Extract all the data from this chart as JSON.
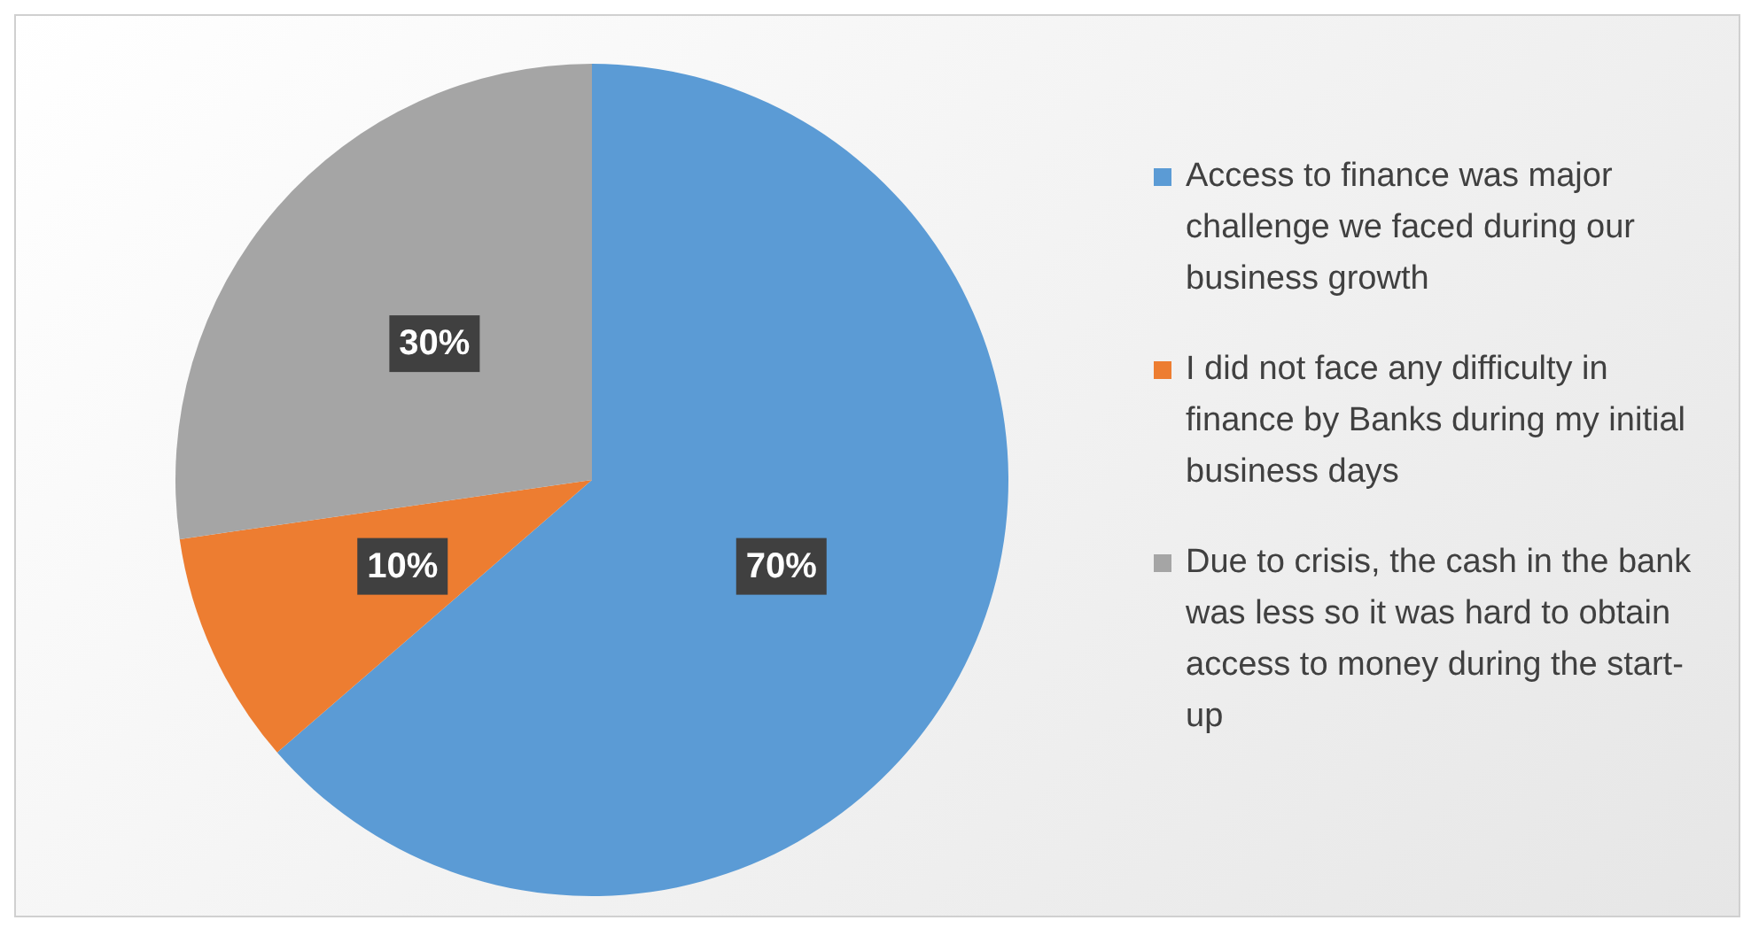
{
  "chart_data": {
    "type": "pie",
    "categories": [
      "Access to finance was major challenge we faced during our business growth",
      "I did not face any difficulty in finance by Banks during my initial business days",
      "Due to crisis, the cash in the bank was less so it was hard to obtain access to money during the start-up"
    ],
    "values": [
      70,
      10,
      30
    ],
    "colors": [
      "#5b9bd5",
      "#ed7d31",
      "#a5a5a5"
    ],
    "value_labels": [
      "70%",
      "10%",
      "30%"
    ],
    "legend": "right"
  }
}
